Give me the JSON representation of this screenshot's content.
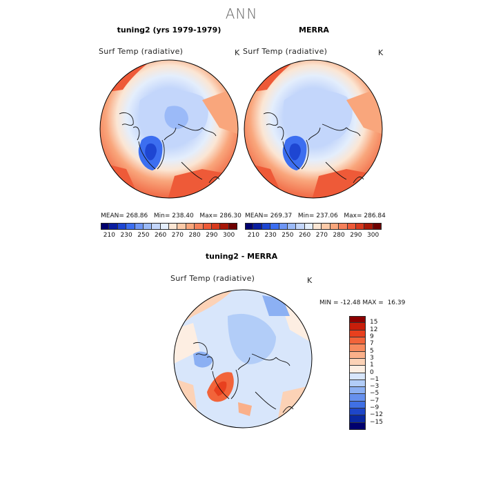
{
  "header": {
    "title": "ANN"
  },
  "panels": {
    "left": {
      "title": "tuning2 (yrs 1979-1979)",
      "variable": "Surf Temp (radiative)",
      "unit": "K",
      "mean_label": "MEAN=",
      "mean": "268.86",
      "min_label": "Min=",
      "min": "238.40",
      "max_label": "Max=",
      "max": "286.30"
    },
    "right": {
      "title": "MERRA",
      "variable": "Surf Temp (radiative)",
      "unit": "K",
      "mean_label": "MEAN=",
      "mean": "269.37",
      "min_label": "Min=",
      "min": "237.06",
      "max_label": "Max=",
      "max": "286.84"
    },
    "diff": {
      "title": "tuning2 - MERRA",
      "variable": "Surf Temp (radiative)",
      "unit": "K",
      "min_label": "MIN =",
      "min": "-12.48",
      "max_label": "MAX =",
      "max": "16.39"
    }
  },
  "colorbar_abs": {
    "ticks": [
      "210",
      "230",
      "250",
      "260",
      "270",
      "280",
      "290",
      "300"
    ],
    "colors": [
      "#00006e",
      "#0a1ea0",
      "#1e46d2",
      "#3c6ef0",
      "#6e96f5",
      "#9bbaf8",
      "#c3d6fb",
      "#e4eefc",
      "#fbe6d4",
      "#fccaa8",
      "#f9a67c",
      "#f5805a",
      "#ee5a38",
      "#d83a1e",
      "#a81808",
      "#6e0000"
    ]
  },
  "colorbar_diff": {
    "ticks": [
      "15",
      "12",
      "9",
      "7",
      "5",
      "3",
      "1",
      "0",
      "−1",
      "−3",
      "−5",
      "−7",
      "−9",
      "−12",
      "−15"
    ],
    "colors": [
      "#8c0000",
      "#c81e0a",
      "#e8401e",
      "#f2643a",
      "#f78a5e",
      "#fab08a",
      "#fcd2b6",
      "#fdeee2",
      "#d8e6fb",
      "#b2cdf8",
      "#8cb0f3",
      "#6690ee",
      "#4070e4",
      "#1e46c8",
      "#0a28a0",
      "#00006e"
    ]
  }
}
